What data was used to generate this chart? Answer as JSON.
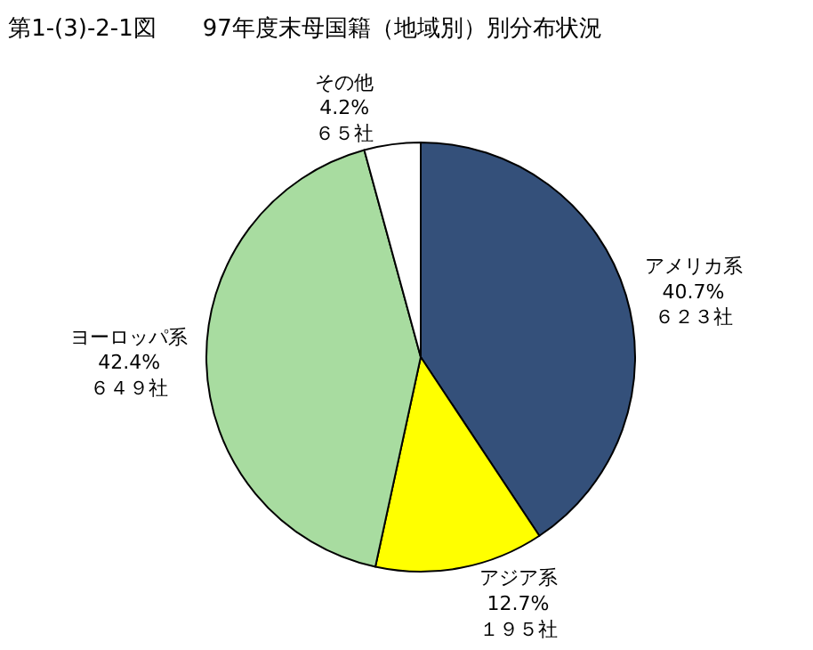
{
  "chart_data": {
    "type": "pie",
    "title": "第1-(3)-2-1図　　97年度末母国籍（地域別）別分布状況",
    "categories": [
      "アメリカ系",
      "アジア系",
      "ヨーロッパ系",
      "その他"
    ],
    "values": [
      623,
      195,
      649,
      65
    ],
    "value_labels": [
      "40.7%\n６２３社",
      "12.7%\n１９５社",
      "42.4%\n６４９社",
      "4.2%\n６５社"
    ],
    "colors": [
      "#34507a",
      "#ffff00",
      "#a8dca0",
      "#ffffff"
    ],
    "legend": false
  }
}
